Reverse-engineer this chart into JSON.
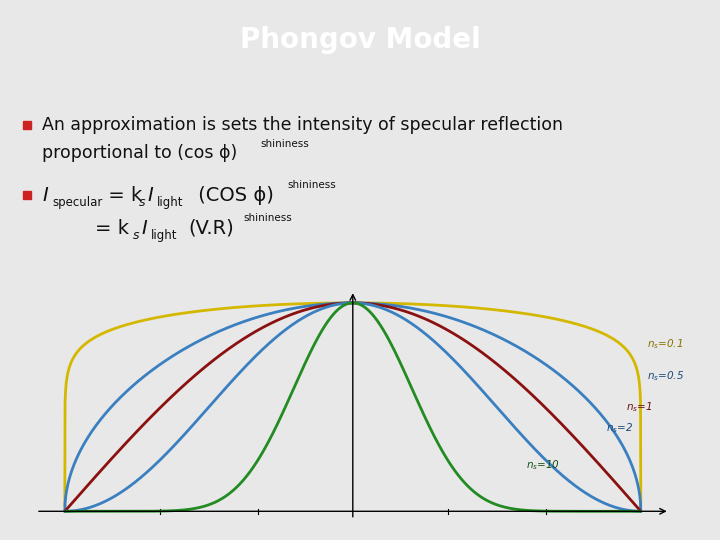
{
  "title": "Phongov Model",
  "title_bg_color": "#4a6fad",
  "title_text_color": "#ffffff",
  "slide_bg_color": "#e8e8e8",
  "curve_ns": [
    0.1,
    0.5,
    1,
    2,
    10
  ],
  "curve_colors": [
    "#d4b800",
    "#3a80c0",
    "#8b1010",
    "#3a80c0",
    "#228b22"
  ],
  "label_texts": [
    "n_s=0.1",
    "n_s=0.5",
    "n_s=1",
    "n_s=2",
    "n_s=10"
  ],
  "label_colors": [
    "#8b7000",
    "#1a4a7a",
    "#6a0f0f",
    "#1a4a7a",
    "#145214"
  ],
  "bullet_color": "#cc2222"
}
